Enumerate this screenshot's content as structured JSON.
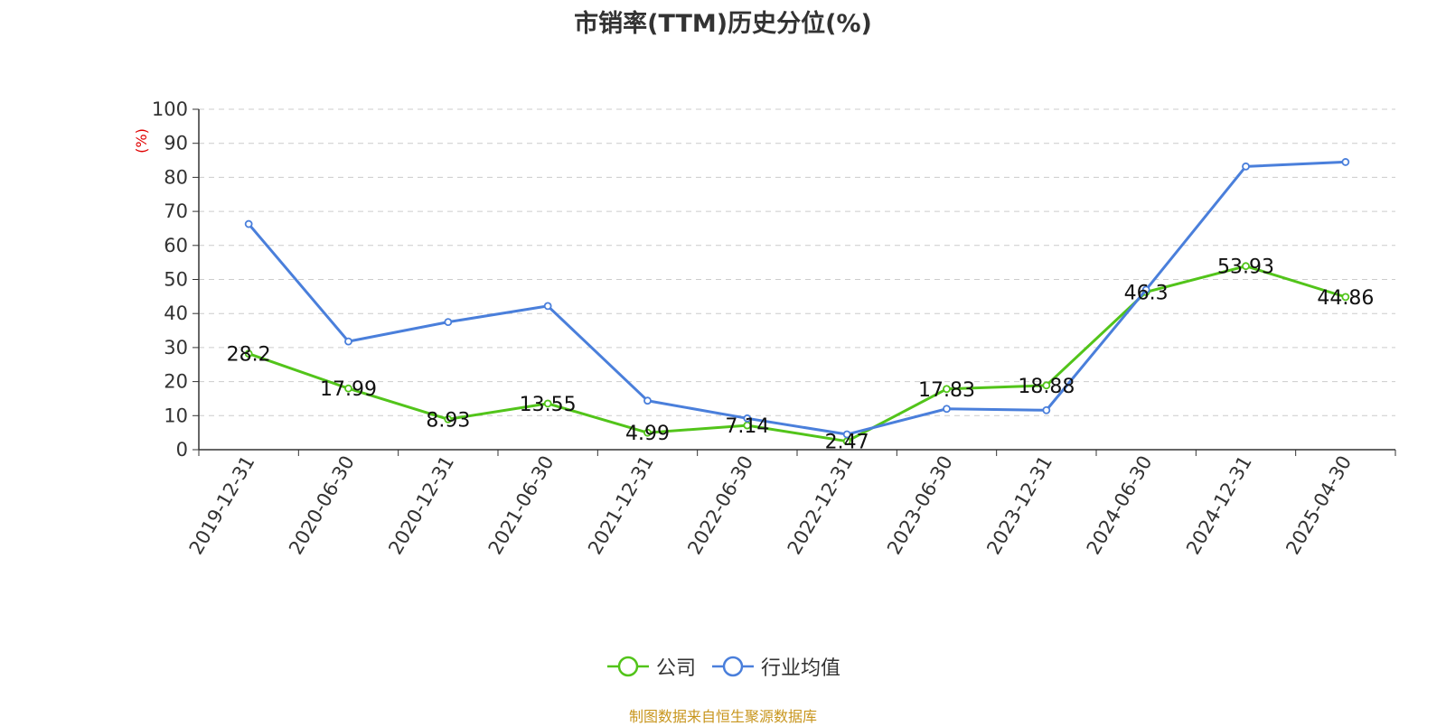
{
  "chart_data": {
    "type": "line",
    "title": "市销率(TTM)历史分位(%)",
    "ylabel": "(%)",
    "xlabel": "",
    "ylim": [
      0,
      100
    ],
    "yticks": [
      0,
      10,
      20,
      30,
      40,
      50,
      60,
      70,
      80,
      90,
      100
    ],
    "categories": [
      "2019-12-31",
      "2020-06-30",
      "2020-12-31",
      "2021-06-30",
      "2021-12-31",
      "2022-06-30",
      "2022-12-31",
      "2023-06-30",
      "2023-12-31",
      "2024-06-30",
      "2024-12-31",
      "2025-04-30"
    ],
    "series": [
      {
        "name": "公司",
        "color": "#52c41a",
        "values": [
          28.2,
          17.99,
          8.93,
          13.55,
          4.99,
          7.14,
          2.47,
          17.83,
          18.88,
          46.3,
          53.93,
          44.86
        ],
        "labels": [
          "28.2",
          "17.99",
          "8.93",
          "13.55",
          "4.99",
          "7.14",
          "2.47",
          "17.83",
          "18.88",
          "46.3",
          "53.93",
          "44.86"
        ]
      },
      {
        "name": "行业均值",
        "color": "#4a7fdb",
        "values": [
          66.3,
          31.8,
          37.5,
          42.2,
          14.4,
          9.2,
          4.5,
          12.0,
          11.6,
          47.0,
          83.2,
          84.5
        ]
      }
    ],
    "grid": true,
    "legend_position": "bottom-center"
  },
  "source_note": "制图数据来自恒生聚源数据库"
}
